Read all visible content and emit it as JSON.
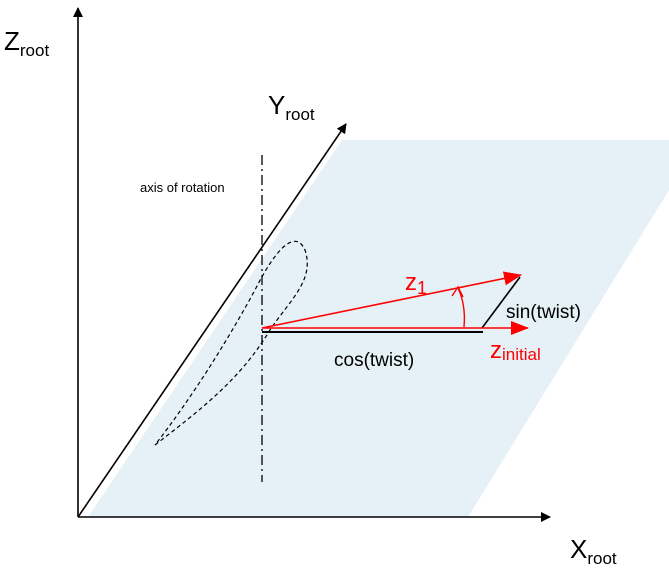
{
  "axes": {
    "z": {
      "main": "Z",
      "sub": "root"
    },
    "y": {
      "main": "Y",
      "sub": "root"
    },
    "x": {
      "main": "X",
      "sub": "root"
    }
  },
  "labels": {
    "axis_of_rotation": "axis of rotation",
    "z1_main": "z",
    "z1_sub": "1",
    "z_initial_main": "z",
    "z_initial_sub": "initial",
    "sin": "sin(twist)",
    "cos": "cos(twist)"
  },
  "colors": {
    "plane": "#e6f0f7",
    "vectors": "#ff0000",
    "lines": "#000000"
  }
}
